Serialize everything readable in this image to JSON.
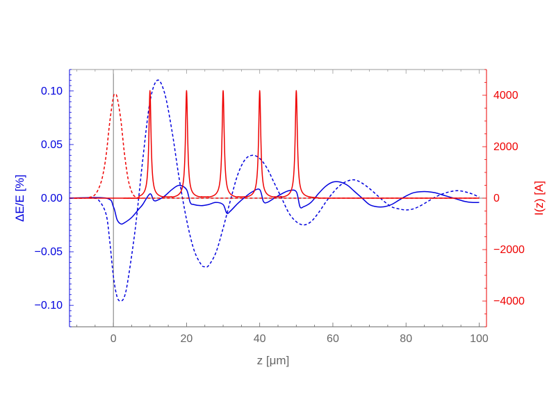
{
  "chart_data": {
    "type": "line",
    "xlabel": "z [μm]",
    "ylabel_left": "ΔE/E [%]",
    "ylabel_right": "I(z) [A]",
    "xlim": [
      -12,
      102
    ],
    "ylim_left": [
      -0.12,
      0.12
    ],
    "ylim_right": [
      -5000,
      5000
    ],
    "x_ticks": [
      0,
      20,
      40,
      60,
      80,
      100
    ],
    "y_left_ticks": [
      -0.1,
      -0.05,
      0.0,
      0.05,
      0.1
    ],
    "y_left_tick_labels": [
      "-0.10",
      "-0.05",
      "0.00",
      "0.05",
      "0.10"
    ],
    "y_right_ticks": [
      -4000,
      -2000,
      0,
      2000,
      4000
    ],
    "y_right_tick_labels": [
      "-4000",
      "-2000",
      "0",
      "2000",
      "4000"
    ],
    "grid": false,
    "colors": {
      "left_axis": "#0000dd",
      "right_axis": "#ee0000",
      "x_axis": "#666666"
    },
    "series": [
      {
        "axis": "left",
        "style": "solid",
        "color": "#0000dd",
        "x": [
          -12,
          -2,
          0,
          1,
          2,
          3,
          5,
          7,
          8,
          10,
          11,
          12,
          14,
          16,
          18,
          20,
          21,
          22,
          24,
          26,
          28,
          30,
          31,
          32,
          34,
          36,
          38,
          40,
          41,
          42,
          44,
          46,
          48,
          50,
          51,
          52,
          54,
          56,
          58,
          60,
          62,
          64,
          66,
          68,
          70,
          72,
          74,
          76,
          78,
          80,
          82,
          84,
          86,
          88,
          90,
          92,
          94,
          96,
          98,
          100
        ],
        "y": [
          0,
          0,
          -0.008,
          -0.02,
          -0.024,
          -0.023,
          -0.018,
          -0.01,
          -0.006,
          0.004,
          -0.002,
          -0.002,
          0.002,
          0.008,
          0.012,
          0.008,
          -0.004,
          -0.006,
          -0.007,
          -0.006,
          -0.004,
          -0.006,
          -0.014,
          -0.012,
          -0.005,
          0.001,
          0.006,
          0.008,
          -0.003,
          -0.004,
          0.0,
          0.004,
          0.007,
          0.006,
          -0.008,
          -0.008,
          -0.004,
          0.004,
          0.011,
          0.015,
          0.015,
          0.012,
          0.006,
          0.0,
          -0.006,
          -0.008,
          -0.008,
          -0.006,
          -0.002,
          0.002,
          0.005,
          0.006,
          0.006,
          0.005,
          0.003,
          0.001,
          -0.001,
          -0.003,
          -0.004,
          -0.004
        ]
      },
      {
        "axis": "left",
        "style": "dashed",
        "color": "#0000dd",
        "x": [
          -12,
          -6,
          -4,
          -2,
          -1,
          0,
          1,
          2,
          3,
          4,
          6,
          8,
          10,
          12,
          14,
          16,
          18,
          20,
          22,
          24,
          25,
          26,
          28,
          30,
          32,
          34,
          36,
          38,
          40,
          42,
          44,
          46,
          48,
          50,
          52,
          54,
          56,
          58,
          60,
          62,
          64,
          66,
          68,
          70,
          72,
          74,
          76,
          78,
          80,
          82,
          84,
          86,
          88,
          90,
          92,
          94,
          96,
          98,
          100
        ],
        "y": [
          0,
          0,
          -0.002,
          -0.015,
          -0.04,
          -0.073,
          -0.092,
          -0.096,
          -0.092,
          -0.076,
          -0.028,
          0.035,
          0.09,
          0.11,
          0.098,
          0.063,
          0.018,
          -0.02,
          -0.048,
          -0.062,
          -0.064,
          -0.063,
          -0.051,
          -0.028,
          -0.002,
          0.022,
          0.036,
          0.04,
          0.037,
          0.028,
          0.014,
          0.0,
          -0.014,
          -0.022,
          -0.025,
          -0.022,
          -0.014,
          -0.004,
          0.005,
          0.012,
          0.016,
          0.017,
          0.014,
          0.009,
          0.003,
          -0.003,
          -0.008,
          -0.01,
          -0.011,
          -0.01,
          -0.007,
          -0.003,
          0.001,
          0.004,
          0.006,
          0.007,
          0.006,
          0.004,
          0.001
        ]
      },
      {
        "axis": "right",
        "style": "dashed",
        "color": "#ee0000",
        "x": [
          -12,
          -8,
          -6,
          -5,
          -4,
          -3,
          -2,
          -1,
          0,
          0.5,
          1,
          2,
          3,
          4,
          5,
          6,
          8,
          10,
          100
        ],
        "y": [
          0,
          0,
          50,
          140,
          380,
          820,
          1650,
          2950,
          3930,
          4000,
          3930,
          3080,
          1760,
          760,
          250,
          50,
          0,
          0,
          0
        ]
      }
    ],
    "peaks": {
      "axis": "right",
      "style": "solid",
      "color": "#ee0000",
      "centers": [
        10,
        20,
        30,
        40,
        50
      ],
      "heights": [
        4000,
        4000,
        4000,
        4000,
        4000
      ]
    }
  }
}
